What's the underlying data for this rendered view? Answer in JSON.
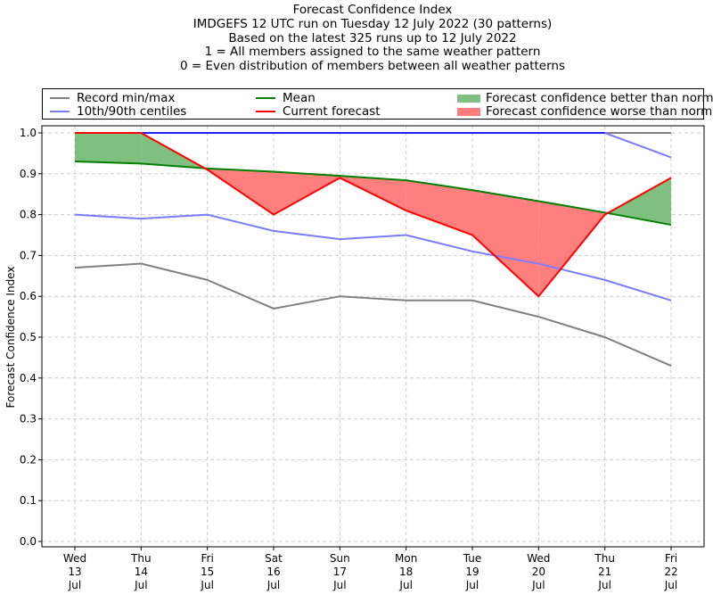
{
  "chart_data": {
    "type": "line",
    "title_lines": [
      "Forecast Confidence Index",
      "IMDGEFS 12 UTC run on Tuesday 12 July 2022 (30 patterns)",
      "Based on the latest 325 runs up to 12 July 2022",
      "1 = All members assigned to the same weather pattern",
      "0 = Even distribution of members between all weather patterns"
    ],
    "ylabel": "Forecast Confidence Index",
    "xlabel": "",
    "ylim": [
      0.0,
      1.0
    ],
    "yticks": [
      "0.0",
      "0.1",
      "0.2",
      "0.3",
      "0.4",
      "0.5",
      "0.6",
      "0.7",
      "0.8",
      "0.9",
      "1.0"
    ],
    "grid": true,
    "legend_position": "top",
    "categories": [
      {
        "day": "Wed",
        "date": "13",
        "month": "Jul"
      },
      {
        "day": "Thu",
        "date": "14",
        "month": "Jul"
      },
      {
        "day": "Fri",
        "date": "15",
        "month": "Jul"
      },
      {
        "day": "Sat",
        "date": "16",
        "month": "Jul"
      },
      {
        "day": "Sun",
        "date": "17",
        "month": "Jul"
      },
      {
        "day": "Mon",
        "date": "18",
        "month": "Jul"
      },
      {
        "day": "Tue",
        "date": "19",
        "month": "Jul"
      },
      {
        "day": "Wed",
        "date": "20",
        "month": "Jul"
      },
      {
        "day": "Thu",
        "date": "21",
        "month": "Jul"
      },
      {
        "day": "Fri",
        "date": "22",
        "month": "Jul"
      }
    ],
    "series": {
      "record_min": [
        0.67,
        0.68,
        0.64,
        0.57,
        0.6,
        0.59,
        0.59,
        0.55,
        0.5,
        0.43
      ],
      "record_max": [
        1.0,
        1.0,
        1.0,
        1.0,
        1.0,
        1.0,
        1.0,
        1.0,
        1.0,
        1.0
      ],
      "p10": [
        0.8,
        0.79,
        0.8,
        0.76,
        0.74,
        0.75,
        0.71,
        0.68,
        0.64,
        0.59
      ],
      "p90": [
        1.0,
        1.0,
        1.0,
        1.0,
        1.0,
        1.0,
        1.0,
        1.0,
        1.0,
        0.94
      ],
      "mean": [
        0.93,
        0.925,
        0.913,
        0.905,
        0.895,
        0.884,
        0.86,
        0.833,
        0.805,
        0.775
      ],
      "current": [
        1.0,
        1.0,
        0.91,
        0.8,
        0.89,
        0.81,
        0.75,
        0.6,
        0.8,
        0.89
      ]
    },
    "colors": {
      "record": "#808080",
      "centiles": "#7b7bff",
      "centiles_top": "#2020ff",
      "mean": "#008000",
      "current": "#ff0000",
      "better_fill": "#7fbf7f",
      "worse_fill": "#ff7f7f",
      "grid": "#cccccc"
    },
    "legend": {
      "record": "Record min/max",
      "centiles": "10th/90th centiles",
      "mean": "Mean",
      "current": "Current forecast",
      "better": "Forecast confidence better than normal",
      "worse": "Forecast confidence worse than normal"
    }
  }
}
